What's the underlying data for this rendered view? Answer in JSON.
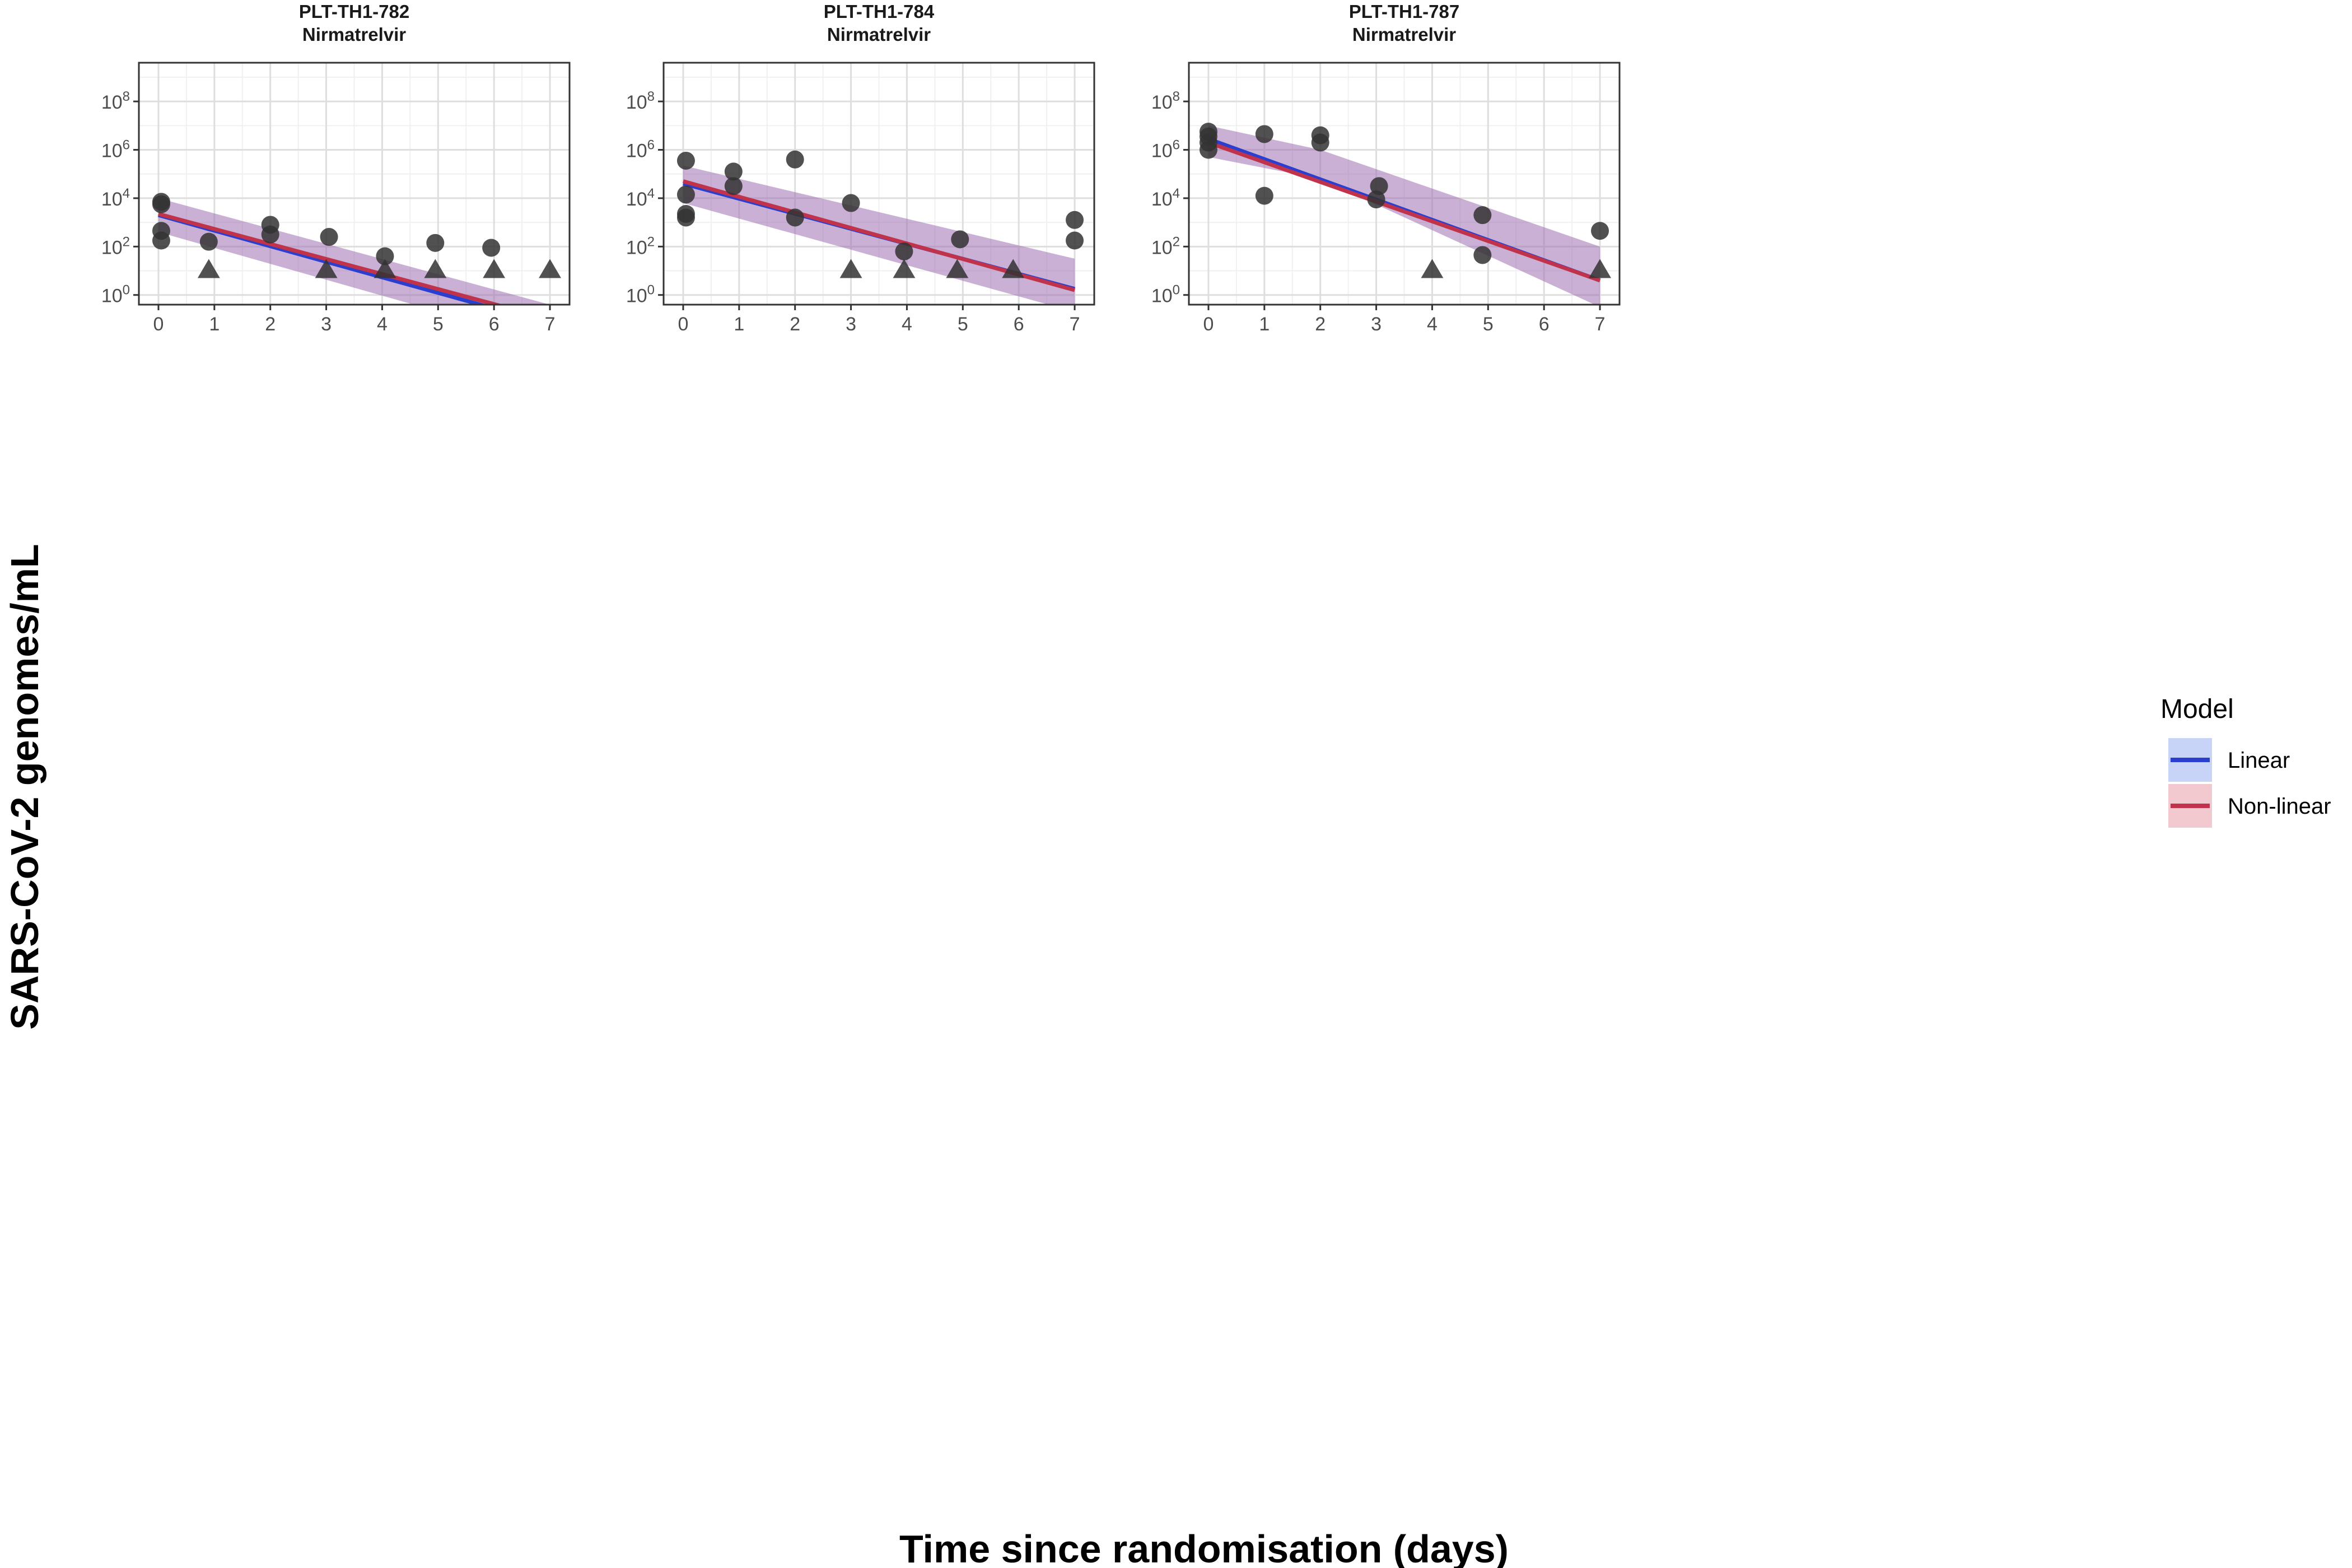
{
  "chart_data": {
    "type": "scatter",
    "xlabel": "Time since randomisation (days)",
    "ylabel": "SARS-CoV-2 genomes/mL",
    "y_scale": "log10",
    "ylim_log10": [
      -0.4,
      9.6
    ],
    "xlim": [
      -0.35,
      7.35
    ],
    "x_ticks": [
      0,
      1,
      2,
      3,
      4,
      5,
      6,
      7
    ],
    "y_ticks": [
      {
        "base": "10",
        "exp": "0"
      },
      {
        "base": "10",
        "exp": "2"
      },
      {
        "base": "10",
        "exp": "4"
      },
      {
        "base": "10",
        "exp": "6"
      },
      {
        "base": "10",
        "exp": "8"
      }
    ],
    "grid": true,
    "legend": {
      "title": "Model",
      "position": "right",
      "items": [
        {
          "label": "Linear",
          "line_color": "#2a3fcf",
          "fill_color": "#c7d3f7"
        },
        {
          "label": "Non-linear",
          "line_color": "#c0334a",
          "fill_color": "#f2c9cf"
        }
      ]
    },
    "colors": {
      "point": "#333333",
      "band": "#9c6fb0",
      "grid_major": "#dedede",
      "grid_minor": "#f0f0f0",
      "panel_border": "#333333"
    },
    "panels": [
      {
        "title_line1": "PLT-TH1-782",
        "title_line2": "Nirmatrelvir",
        "points": [
          {
            "x": 0.05,
            "y": 3.85,
            "shape": "circle"
          },
          {
            "x": 0.05,
            "y": 3.75,
            "shape": "circle"
          },
          {
            "x": 0.05,
            "y": 2.65,
            "shape": "circle"
          },
          {
            "x": 0.05,
            "y": 2.25,
            "shape": "circle"
          },
          {
            "x": 0.9,
            "y": 2.2,
            "shape": "circle"
          },
          {
            "x": 2.0,
            "y": 2.9,
            "shape": "circle"
          },
          {
            "x": 2.0,
            "y": 2.5,
            "shape": "circle"
          },
          {
            "x": 3.05,
            "y": 2.4,
            "shape": "circle"
          },
          {
            "x": 4.05,
            "y": 1.6,
            "shape": "circle"
          },
          {
            "x": 4.95,
            "y": 2.15,
            "shape": "circle"
          },
          {
            "x": 5.95,
            "y": 1.95,
            "shape": "circle"
          },
          {
            "x": 0.9,
            "y": 1.0,
            "shape": "triangle"
          },
          {
            "x": 3.0,
            "y": 1.0,
            "shape": "triangle"
          },
          {
            "x": 4.05,
            "y": 1.0,
            "shape": "triangle"
          },
          {
            "x": 4.95,
            "y": 1.0,
            "shape": "triangle"
          },
          {
            "x": 6.0,
            "y": 1.0,
            "shape": "triangle"
          },
          {
            "x": 7.0,
            "y": 1.0,
            "shape": "triangle"
          }
        ],
        "linear": {
          "x": [
            0,
            7
          ],
          "y": [
            3.3,
            -1.2
          ]
        },
        "nonlinear": {
          "x": [
            0,
            7
          ],
          "y": [
            3.35,
            -1.0
          ]
        },
        "band_upper": [
          [
            0,
            4.0
          ],
          [
            7,
            -0.4
          ]
        ],
        "band_lower": [
          [
            0,
            2.6
          ],
          [
            7,
            -2.0
          ]
        ]
      },
      {
        "title_line1": "PLT-TH1-784",
        "title_line2": "Nirmatrelvir",
        "points": [
          {
            "x": 0.05,
            "y": 5.55,
            "shape": "circle"
          },
          {
            "x": 0.05,
            "y": 4.15,
            "shape": "circle"
          },
          {
            "x": 0.05,
            "y": 3.35,
            "shape": "circle"
          },
          {
            "x": 0.05,
            "y": 3.2,
            "shape": "circle"
          },
          {
            "x": 0.9,
            "y": 5.1,
            "shape": "circle"
          },
          {
            "x": 0.9,
            "y": 4.5,
            "shape": "circle"
          },
          {
            "x": 2.0,
            "y": 5.6,
            "shape": "circle"
          },
          {
            "x": 2.0,
            "y": 3.2,
            "shape": "circle"
          },
          {
            "x": 3.0,
            "y": 3.8,
            "shape": "circle"
          },
          {
            "x": 3.95,
            "y": 1.8,
            "shape": "circle"
          },
          {
            "x": 4.95,
            "y": 2.3,
            "shape": "circle"
          },
          {
            "x": 7.0,
            "y": 3.1,
            "shape": "circle"
          },
          {
            "x": 7.0,
            "y": 2.25,
            "shape": "circle"
          },
          {
            "x": 3.0,
            "y": 1.0,
            "shape": "triangle"
          },
          {
            "x": 3.95,
            "y": 1.0,
            "shape": "triangle"
          },
          {
            "x": 4.9,
            "y": 1.0,
            "shape": "triangle"
          },
          {
            "x": 5.9,
            "y": 1.0,
            "shape": "triangle"
          }
        ],
        "linear": {
          "x": [
            0,
            7
          ],
          "y": [
            4.6,
            0.25
          ]
        },
        "nonlinear": {
          "x": [
            0,
            7
          ],
          "y": [
            4.7,
            0.2
          ]
        },
        "band_upper": [
          [
            0,
            5.35
          ],
          [
            7,
            1.5
          ]
        ],
        "band_lower": [
          [
            0,
            3.8
          ],
          [
            7,
            -0.7
          ]
        ]
      },
      {
        "title_line1": "PLT-TH1-787",
        "title_line2": "Nirmatrelvir",
        "points": [
          {
            "x": 0.0,
            "y": 6.75,
            "shape": "circle"
          },
          {
            "x": 0.0,
            "y": 6.55,
            "shape": "circle"
          },
          {
            "x": 0.0,
            "y": 6.3,
            "shape": "circle"
          },
          {
            "x": 0.0,
            "y": 6.0,
            "shape": "circle"
          },
          {
            "x": 1.0,
            "y": 6.65,
            "shape": "circle"
          },
          {
            "x": 1.0,
            "y": 4.1,
            "shape": "circle"
          },
          {
            "x": 2.0,
            "y": 6.6,
            "shape": "circle"
          },
          {
            "x": 2.0,
            "y": 6.3,
            "shape": "circle"
          },
          {
            "x": 3.05,
            "y": 4.5,
            "shape": "circle"
          },
          {
            "x": 3.0,
            "y": 3.95,
            "shape": "circle"
          },
          {
            "x": 4.9,
            "y": 3.3,
            "shape": "circle"
          },
          {
            "x": 4.9,
            "y": 1.65,
            "shape": "circle"
          },
          {
            "x": 7.0,
            "y": 2.65,
            "shape": "circle"
          },
          {
            "x": 4.0,
            "y": 1.0,
            "shape": "triangle"
          },
          {
            "x": 7.0,
            "y": 1.0,
            "shape": "triangle"
          }
        ],
        "linear": {
          "x": [
            0,
            7
          ],
          "y": [
            6.45,
            0.6
          ]
        },
        "nonlinear": {
          "x": [
            0,
            7
          ],
          "y": [
            6.3,
            0.6
          ]
        },
        "band_upper": [
          [
            0,
            7.0
          ],
          [
            2,
            6.0
          ],
          [
            7,
            2.0
          ]
        ],
        "band_lower": [
          [
            0,
            5.7
          ],
          [
            2,
            4.8
          ],
          [
            7,
            -0.5
          ]
        ]
      }
    ]
  }
}
